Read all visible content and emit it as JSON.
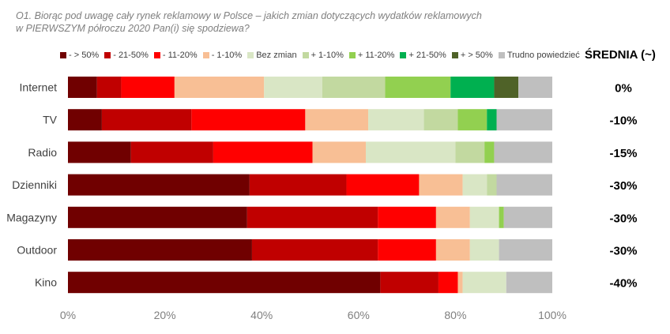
{
  "question": {
    "line1": "O1. Biorąc pod uwagę cały rynek reklamowy w Polsce – jakich zmian dotyczących wydatków reklamowych",
    "line2": "w PIERWSZYM półroczu 2020 Pan(i) się spodziewa?"
  },
  "average_header": "ŚREDNIA (~)",
  "colors": [
    "#700000",
    "#c00000",
    "#ff0000",
    "#f8bf95",
    "#d9e6c5",
    "#c2d9a0",
    "#92d050",
    "#00b050",
    "#4f6228",
    "#bfbfbf"
  ],
  "chart_data": {
    "type": "bar",
    "orientation": "horizontal",
    "stacked": true,
    "title": "O1. Biorąc pod uwagę cały rynek reklamowy w Polsce – jakich zmian dotyczących wydatków reklamowych w PIERWSZYM półroczu 2020 Pan(i) się spodziewa?",
    "categories": [
      "Internet",
      "TV",
      "Radio",
      "Dzienniki",
      "Magazyny",
      "Outdoor",
      "Kino"
    ],
    "series": [
      {
        "name": "- > 50%",
        "values": [
          6,
          7,
          13,
          37.5,
          37,
          38,
          64.5
        ]
      },
      {
        "name": "- 21-50%",
        "values": [
          5,
          18.5,
          17,
          20,
          27,
          26,
          12
        ]
      },
      {
        "name": "- 11-20%",
        "values": [
          11,
          23.5,
          20.5,
          15,
          12,
          12,
          4
        ]
      },
      {
        "name": "- 1-10%",
        "values": [
          18.5,
          13,
          11,
          9,
          7,
          7,
          1
        ]
      },
      {
        "name": "Bez zmian",
        "values": [
          12,
          11.5,
          18.5,
          5,
          6,
          6,
          9
        ]
      },
      {
        "name": "+ 1-10%",
        "values": [
          13,
          7,
          6,
          2,
          0,
          0,
          0
        ]
      },
      {
        "name": "+ 11-20%",
        "values": [
          13.5,
          6,
          2,
          0,
          1,
          0,
          0
        ]
      },
      {
        "name": "+ 21-50%",
        "values": [
          9,
          2,
          0,
          0,
          0,
          0,
          0
        ]
      },
      {
        "name": "+ > 50%",
        "values": [
          5,
          0,
          0,
          0,
          0,
          0,
          0
        ]
      },
      {
        "name": "Trudno powiedzieć",
        "values": [
          7,
          11.5,
          12,
          11.5,
          10,
          11,
          9.5
        ]
      }
    ],
    "averages": [
      "0%",
      "-10%",
      "-15%",
      "-30%",
      "-30%",
      "-30%",
      "-40%"
    ],
    "xlim": [
      0,
      100
    ],
    "xticks": [
      "0%",
      "20%",
      "40%",
      "60%",
      "80%",
      "100%"
    ],
    "xlabel": "",
    "ylabel": "",
    "legend_position": "top",
    "grid": false
  }
}
